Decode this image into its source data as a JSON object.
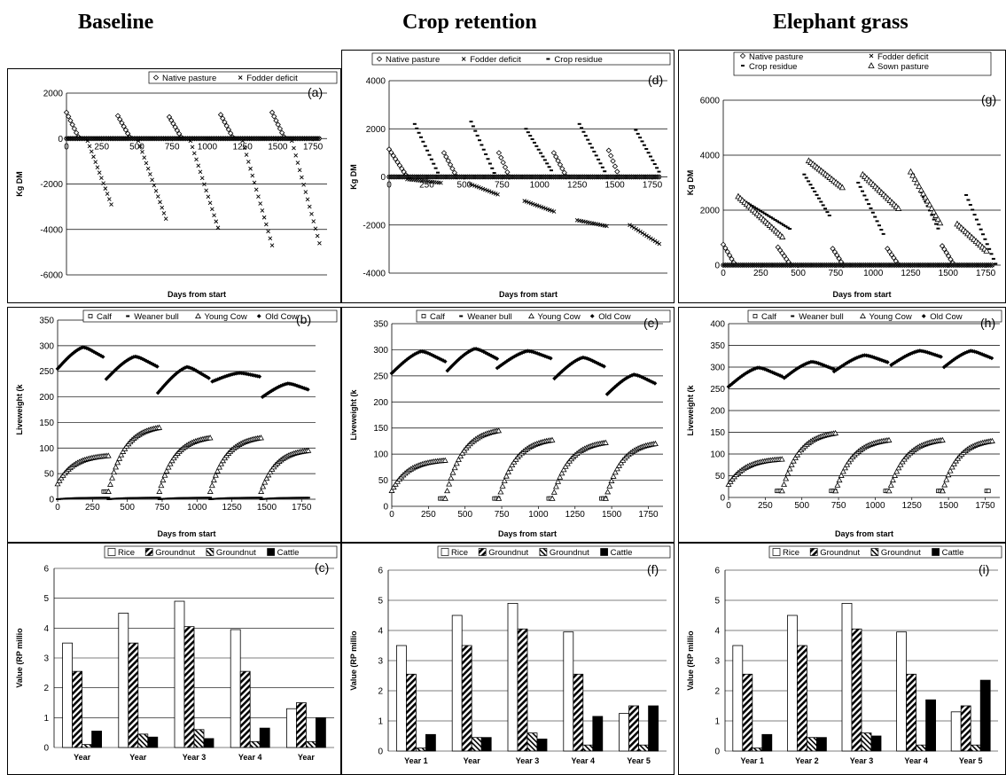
{
  "columns": [
    "Baseline",
    "Crop retention",
    "Elephant grass"
  ],
  "feed_panels": [
    {
      "tag": "(a)",
      "legend": [
        "Native pasture",
        "Fodder deficit"
      ],
      "xlabel": "Days from start",
      "ylabel": "Kg DM",
      "y_ticks": [
        "2000",
        "0",
        "-2000",
        "-4000",
        "-6000"
      ],
      "x_ticks": [
        "0",
        "250",
        "500",
        "750",
        "1000",
        "1250",
        "1500",
        "1750"
      ]
    },
    {
      "tag": "(d)",
      "legend": [
        "Native pasture",
        "Fodder deficit",
        "Crop residue"
      ],
      "xlabel": "Days from start",
      "ylabel": "Kg DM",
      "y_ticks": [
        "4000",
        "2000",
        "0",
        "-2000",
        "-4000"
      ],
      "x_ticks": [
        "0",
        "250",
        "500",
        "750",
        "1000",
        "1250",
        "1500",
        "1750"
      ]
    },
    {
      "tag": "(g)",
      "legend": [
        "Native pasture",
        "Fodder deficit",
        "Crop residue",
        "Sown pasture"
      ],
      "xlabel": "Days from start",
      "ylabel": "Kg DM",
      "y_ticks": [
        "6000",
        "4000",
        "2000",
        "0"
      ],
      "x_ticks": [
        "0",
        "250",
        "500",
        "750",
        "1000",
        "1250",
        "1500",
        "1750"
      ]
    }
  ],
  "weight_panels": [
    {
      "tag": "(b)",
      "legend": [
        "Calf",
        "Weaner bull",
        "Young Cow",
        "Old Cow"
      ],
      "xlabel": "Days from start",
      "ylabel": "Liveweight (k",
      "y_ticks": [
        "350",
        "300",
        "250",
        "200",
        "150",
        "100",
        "50",
        "0"
      ],
      "x_ticks": [
        "0",
        "250",
        "500",
        "750",
        "1000",
        "1250",
        "1500",
        "1750"
      ]
    },
    {
      "tag": "(e)",
      "legend": [
        "Calf",
        "Weaner bull",
        "Young Cow",
        "Old Cow"
      ],
      "xlabel": "Days from start",
      "ylabel": "Liveweight (k",
      "y_ticks": [
        "350",
        "300",
        "250",
        "200",
        "150",
        "100",
        "50",
        "0"
      ],
      "x_ticks": [
        "0",
        "250",
        "500",
        "750",
        "1000",
        "1250",
        "1500",
        "1750"
      ]
    },
    {
      "tag": "(h)",
      "legend": [
        "Calf",
        "Weaner bull",
        "Young Cow",
        "Old Cow"
      ],
      "xlabel": "Days from start",
      "ylabel": "Liveweight (k",
      "y_ticks": [
        "400",
        "350",
        "300",
        "250",
        "200",
        "150",
        "100",
        "50",
        "0"
      ],
      "x_ticks": [
        "0",
        "250",
        "500",
        "750",
        "1000",
        "1250",
        "1500",
        "1750"
      ]
    }
  ],
  "value_panels": [
    {
      "tag": "(c)",
      "legend": [
        "Rice",
        "Groundnut",
        "Groundnut",
        "Cattle"
      ],
      "ylabel": "Value (RP millio",
      "y_ticks": [
        "6",
        "5",
        "4",
        "3",
        "2",
        "1",
        "0"
      ],
      "x_ticks": [
        "Year",
        "Year",
        "Year 3",
        "Year 4",
        "Year"
      ]
    },
    {
      "tag": "(f)",
      "legend": [
        "Rice",
        "Groundnut",
        "Groundnut",
        "Cattle"
      ],
      "ylabel": "Value (RP millio",
      "y_ticks": [
        "6",
        "5",
        "4",
        "3",
        "2",
        "1",
        "0"
      ],
      "x_ticks": [
        "Year 1",
        "Year",
        "Year 3",
        "Year 4",
        "Year 5"
      ]
    },
    {
      "tag": "(i)",
      "legend": [
        "Rice",
        "Groundnut",
        "Groundnut",
        "Cattle"
      ],
      "ylabel": "Value (RP millio",
      "y_ticks": [
        "6",
        "5",
        "4",
        "3",
        "2",
        "1",
        "0"
      ],
      "x_ticks": [
        "Year 1",
        "Year 2",
        "Year 3",
        "Year 4",
        "Year 5"
      ]
    }
  ],
  "chart_data": [
    {
      "id": "a",
      "type": "scatter",
      "ylim": [
        -6000,
        2000
      ],
      "xlim": [
        0,
        1850
      ],
      "series": [
        {
          "name": "Native pasture",
          "cycles": [
            [
              0,
              1150,
              90,
              0
            ],
            [
              365,
              1000,
              455,
              0
            ],
            [
              730,
              950,
              820,
              0
            ],
            [
              1095,
              1050,
              1185,
              0
            ],
            [
              1460,
              1150,
              1550,
              0
            ]
          ]
        },
        {
          "name": "Fodder deficit",
          "cycles": [
            [
              150,
              -100,
              330,
              -3100
            ],
            [
              510,
              -100,
              710,
              -3600
            ],
            [
              880,
              -100,
              1080,
              -4000
            ],
            [
              1250,
              -100,
              1460,
              -4700
            ],
            [
              1600,
              -100,
              1800,
              -4700
            ]
          ]
        }
      ]
    },
    {
      "id": "d",
      "type": "scatter",
      "ylim": [
        -4000,
        4000
      ],
      "xlim": [
        0,
        1850
      ],
      "series": [
        {
          "name": "Native pasture",
          "cycles": [
            [
              0,
              1150,
              120,
              0
            ],
            [
              365,
              1000,
              450,
              0
            ],
            [
              730,
              1000,
              800,
              0
            ],
            [
              1095,
              1000,
              1180,
              0
            ],
            [
              1460,
              1100,
              1530,
              0
            ]
          ]
        },
        {
          "name": "Fodder deficit",
          "cycles": [
            [
              120,
              -100,
              350,
              -250
            ],
            [
              540,
              -300,
              730,
              -750
            ],
            [
              900,
              -1000,
              1100,
              -1450
            ],
            [
              1250,
              -1800,
              1450,
              -2050
            ],
            [
              1600,
              -2000,
              1800,
              -2800
            ]
          ]
        },
        {
          "name": "Crop residue",
          "cycles": [
            [
              170,
              2200,
              330,
              100
            ],
            [
              545,
              2300,
              700,
              150
            ],
            [
              910,
              2000,
              1080,
              250
            ],
            [
              1265,
              2200,
              1440,
              150
            ],
            [
              1640,
              1950,
              1800,
              150
            ]
          ]
        }
      ]
    },
    {
      "id": "g",
      "type": "scatter",
      "ylim": [
        0,
        6000
      ],
      "xlim": [
        0,
        1850
      ],
      "series": [
        {
          "name": "Native pasture",
          "cycles": [
            [
              0,
              750,
              80,
              0
            ],
            [
              365,
              650,
              450,
              0
            ],
            [
              730,
              600,
              800,
              0
            ],
            [
              1095,
              600,
              1170,
              0
            ],
            [
              1460,
              700,
              1540,
              0
            ]
          ]
        },
        {
          "name": "Fodder deficit",
          "points": "zero-line"
        },
        {
          "name": "Crop residue",
          "cycles": [
            [
              150,
              2300,
              450,
              1300
            ],
            [
              540,
              3300,
              720,
              1700
            ],
            [
              900,
              3000,
              1080,
              1000
            ],
            [
              1265,
              3300,
              1440,
              1250
            ],
            [
              1620,
              2550,
              1820,
              0
            ]
          ]
        },
        {
          "name": "Sown pasture",
          "cycles": [
            [
              100,
              2500,
              400,
              1000
            ],
            [
              570,
              3800,
              800,
              2800
            ],
            [
              930,
              3300,
              1180,
              2000
            ],
            [
              1250,
              3400,
              1450,
              1500
            ],
            [
              1560,
              1500,
              1760,
              500
            ]
          ]
        }
      ]
    },
    {
      "id": "b",
      "type": "scatter",
      "ylim": [
        0,
        350
      ],
      "xlim": [
        0,
        1850
      ],
      "series": [
        {
          "name": "Calf",
          "segments": [
            [
              330,
              365,
              15,
              15
            ]
          ]
        },
        {
          "name": "Weaner bull",
          "segments": [
            [
              0,
              365,
              0,
              3
            ],
            [
              365,
              730,
              0,
              3
            ],
            [
              730,
              1095,
              0,
              3
            ],
            [
              1095,
              1460,
              0,
              3
            ],
            [
              1460,
              1800,
              0,
              3
            ]
          ]
        },
        {
          "name": "Young Cow",
          "segments": [
            [
              0,
              365,
              30,
              85
            ],
            [
              365,
              730,
              15,
              140
            ],
            [
              730,
              1095,
              15,
              120
            ],
            [
              1095,
              1460,
              15,
              120
            ],
            [
              1460,
              1800,
              15,
              95
            ]
          ]
        },
        {
          "name": "Old Cow",
          "segments": [
            [
              0,
              330,
              255,
              300
            ],
            [
              350,
              720,
              235,
              282
            ],
            [
              720,
              1095,
              208,
              262
            ],
            [
              1110,
              1460,
              230,
              248
            ],
            [
              1470,
              1800,
              200,
              228
            ]
          ]
        }
      ]
    },
    {
      "id": "e",
      "type": "scatter",
      "ylim": [
        0,
        350
      ],
      "xlim": [
        0,
        1850
      ],
      "series": [
        {
          "name": "Calf",
          "segments": [
            [
              330,
              365,
              15,
              15
            ],
            [
              700,
              735,
              15,
              15
            ],
            [
              1070,
              1095,
              15,
              15
            ],
            [
              1430,
              1460,
              15,
              15
            ]
          ]
        },
        {
          "name": "Weaner bull",
          "segments": []
        },
        {
          "name": "Young Cow",
          "segments": [
            [
              0,
              365,
              30,
              88
            ],
            [
              365,
              730,
              15,
              145
            ],
            [
              730,
              1095,
              15,
              127
            ],
            [
              1095,
              1460,
              15,
              122
            ],
            [
              1460,
              1800,
              15,
              120
            ]
          ]
        },
        {
          "name": "Old Cow",
          "segments": [
            [
              0,
              365,
              255,
              300
            ],
            [
              380,
              720,
              260,
              305
            ],
            [
              720,
              1095,
              265,
              300
            ],
            [
              1110,
              1460,
              245,
              288
            ],
            [
              1470,
              1800,
              215,
              255
            ]
          ]
        }
      ]
    },
    {
      "id": "h",
      "type": "scatter",
      "ylim": [
        0,
        400
      ],
      "xlim": [
        0,
        1850
      ],
      "series": [
        {
          "name": "Calf",
          "segments": [
            [
              330,
              365,
              15,
              15
            ],
            [
              700,
              735,
              15,
              15
            ],
            [
              1070,
              1095,
              15,
              15
            ],
            [
              1430,
              1460,
              15,
              15
            ],
            [
              1760,
              1780,
              15,
              15
            ]
          ]
        },
        {
          "name": "Weaner bull",
          "segments": []
        },
        {
          "name": "Young Cow",
          "segments": [
            [
              0,
              365,
              30,
              88
            ],
            [
              365,
              730,
              15,
              148
            ],
            [
              730,
              1095,
              15,
              132
            ],
            [
              1095,
              1460,
              15,
              132
            ],
            [
              1460,
              1800,
              15,
              130
            ]
          ]
        },
        {
          "name": "Old Cow",
          "segments": [
            [
              0,
              365,
              255,
              302
            ],
            [
              380,
              720,
              275,
              315
            ],
            [
              720,
              1095,
              290,
              330
            ],
            [
              1110,
              1460,
              305,
              340
            ],
            [
              1470,
              1800,
              300,
              340
            ]
          ]
        }
      ]
    },
    {
      "id": "c",
      "type": "bar",
      "categories": [
        "Year",
        "Year",
        "Year 3",
        "Year 4",
        "Year"
      ],
      "ylim": [
        0,
        6
      ],
      "series": [
        {
          "name": "Rice",
          "values": [
            3.5,
            4.5,
            4.9,
            3.95,
            1.3
          ]
        },
        {
          "name": "Groundnut",
          "values": [
            2.55,
            3.5,
            4.05,
            2.55,
            1.5
          ]
        },
        {
          "name": "Groundnut",
          "values": [
            0.1,
            0.45,
            0.6,
            0.2,
            0.2
          ]
        },
        {
          "name": "Cattle",
          "values": [
            0.55,
            0.35,
            0.3,
            0.65,
            1.0
          ]
        }
      ]
    },
    {
      "id": "f",
      "type": "bar",
      "categories": [
        "Year 1",
        "Year",
        "Year 3",
        "Year 4",
        "Year 5"
      ],
      "ylim": [
        0,
        6
      ],
      "series": [
        {
          "name": "Rice",
          "values": [
            3.5,
            4.5,
            4.9,
            3.95,
            1.25
          ]
        },
        {
          "name": "Groundnut",
          "values": [
            2.55,
            3.5,
            4.05,
            2.55,
            1.5
          ]
        },
        {
          "name": "Groundnut",
          "values": [
            0.1,
            0.45,
            0.6,
            0.2,
            0.2
          ]
        },
        {
          "name": "Cattle",
          "values": [
            0.55,
            0.45,
            0.4,
            1.15,
            1.5
          ]
        }
      ]
    },
    {
      "id": "i",
      "type": "bar",
      "categories": [
        "Year 1",
        "Year 2",
        "Year 3",
        "Year 4",
        "Year 5"
      ],
      "ylim": [
        0,
        6
      ],
      "series": [
        {
          "name": "Rice",
          "values": [
            3.5,
            4.5,
            4.9,
            3.95,
            1.3
          ]
        },
        {
          "name": "Groundnut",
          "values": [
            2.55,
            3.5,
            4.05,
            2.55,
            1.5
          ]
        },
        {
          "name": "Groundnut",
          "values": [
            0.1,
            0.45,
            0.6,
            0.2,
            0.2
          ]
        },
        {
          "name": "Cattle",
          "values": [
            0.55,
            0.45,
            0.5,
            1.7,
            2.35
          ]
        }
      ]
    }
  ]
}
